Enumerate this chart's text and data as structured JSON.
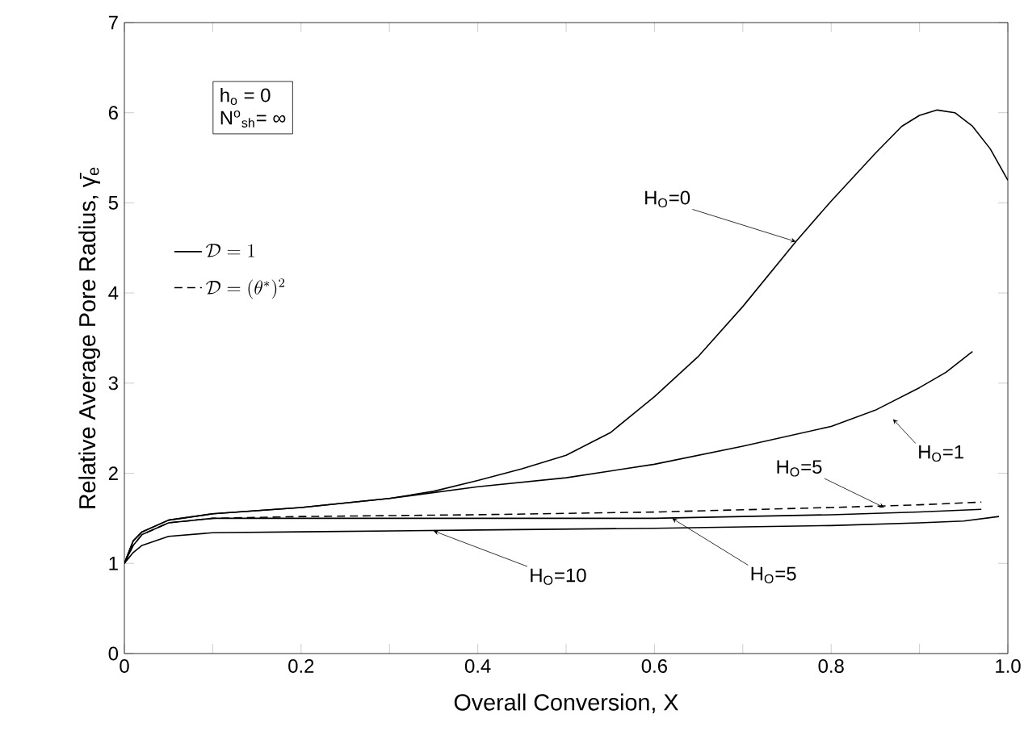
{
  "chart_data": {
    "type": "line",
    "xlabel": "Overall Conversion, X",
    "ylabel": "Relative Average Pore Radius, γ̄$_{e}$",
    "xlim": [
      0,
      1
    ],
    "ylim": [
      0,
      7
    ],
    "xticks": [
      0,
      {
        "value": 0.1,
        "label": null
      },
      0.2,
      {
        "value": 0.3,
        "label": null
      },
      0.4,
      {
        "value": 0.5,
        "label": null
      },
      0.6,
      {
        "value": 0.7,
        "label": null
      },
      0.8,
      {
        "value": 0.9,
        "label": null
      },
      {
        "value": 1,
        "label": "1.0"
      }
    ],
    "yticks": [
      0,
      1,
      2,
      3,
      4,
      5,
      6,
      7
    ],
    "legend": "top left",
    "grid": false,
    "marker": "none",
    "series": [
      {
        "name": "\\mathcal{D}= 1",
        "color": "#000000",
        "line_style": "solid",
        "x": [
          0,
          0.01,
          0.02,
          0.05,
          0.1,
          0.2,
          0.3,
          0.35,
          0.4,
          0.45,
          0.5,
          0.55,
          0.6,
          0.65,
          0.7,
          0.76,
          0.8,
          0.85,
          0.88,
          0.9,
          0.92,
          0.94,
          0.96,
          0.98,
          1.0
        ],
        "values": [
          1.0,
          1.25,
          1.35,
          1.48,
          1.55,
          1.62,
          1.72,
          1.8,
          1.92,
          2.05,
          2.2,
          2.45,
          2.85,
          3.3,
          3.85,
          4.57,
          5.02,
          5.55,
          5.85,
          5.97,
          6.03,
          6.0,
          5.85,
          5.6,
          5.25
        ]
      },
      {
        "name": "\\mathcal{D}= (\\theta^{*})^{2}",
        "color": "#000000",
        "line_style": "dashed",
        "x": [
          0,
          0.01,
          0.02,
          0.05,
          0.1,
          0.2,
          0.4,
          0.6,
          0.8,
          0.9,
          0.97
        ],
        "values": [
          1.0,
          1.2,
          1.32,
          1.45,
          1.5,
          1.52,
          1.54,
          1.57,
          1.62,
          1.65,
          1.68
        ]
      },
      {
        "color": "#000000",
        "line_style": "solid",
        "x": [
          0,
          0.01,
          0.02,
          0.05,
          0.1,
          0.2,
          0.3,
          0.4,
          0.5,
          0.6,
          0.7,
          0.8,
          0.85,
          0.9,
          0.93,
          0.96
        ],
        "values": [
          1.0,
          1.25,
          1.35,
          1.48,
          1.55,
          1.62,
          1.72,
          1.85,
          1.95,
          2.1,
          2.3,
          2.52,
          2.7,
          2.95,
          3.12,
          3.35
        ]
      },
      {
        "color": "#000000",
        "line_style": "solid",
        "x": [
          0,
          0.01,
          0.02,
          0.05,
          0.1,
          0.2,
          0.4,
          0.6,
          0.8,
          0.9,
          0.97
        ],
        "values": [
          1.0,
          1.2,
          1.32,
          1.45,
          1.5,
          1.5,
          1.5,
          1.5,
          1.54,
          1.57,
          1.6
        ]
      },
      {
        "color": "#000000",
        "line_style": "solid",
        "x": [
          0,
          0.01,
          0.02,
          0.05,
          0.1,
          0.2,
          0.4,
          0.6,
          0.8,
          0.9,
          0.95,
          0.99
        ],
        "values": [
          1.0,
          1.12,
          1.2,
          1.3,
          1.34,
          1.35,
          1.37,
          1.39,
          1.42,
          1.45,
          1.47,
          1.52
        ]
      }
    ],
    "annotations": [
      "h$_{o}$ = 0",
      "N$^{o}$$_{sh}$= ∞",
      {
        "text": "H$_{O}$=0",
        "x": 0.76,
        "y": 4.57
      },
      {
        "text": "H$_{O}$=1",
        "x": 0.87,
        "y": 2.6
      },
      {
        "text": "H$_{O}$=5",
        "x": 0.86,
        "y": 1.62
      },
      {
        "text": "H$_{O}$=5",
        "x": 0.62,
        "y": 1.5
      },
      {
        "text": "H$_{O}$=10",
        "x": 0.35,
        "y": 1.36
      }
    ]
  }
}
